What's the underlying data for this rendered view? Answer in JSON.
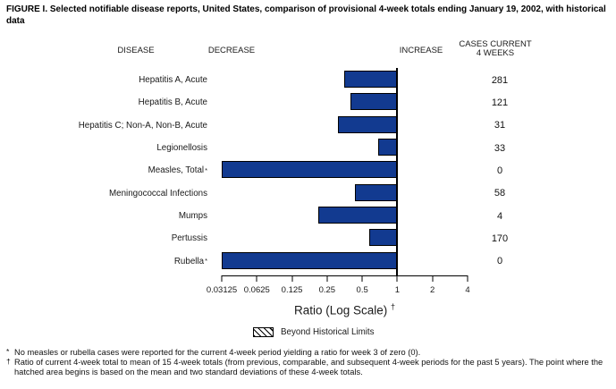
{
  "title": "FIGURE I. Selected notifiable disease reports, United States, comparison of provisional 4-week totals ending January 19, 2002, with historical data",
  "headers": {
    "disease": "DISEASE",
    "decrease": "DECREASE",
    "increase": "INCREASE",
    "cases_line1": "CASES CURRENT",
    "cases_line2": "4 WEEKS"
  },
  "chart_data": {
    "type": "bar",
    "orientation": "horizontal",
    "scale": "log2",
    "title": "Comparison of provisional 4-week totals ending January 19, 2002, with historical data",
    "bar_color": "#123a90",
    "axis": {
      "min": 0.03125,
      "max": 4,
      "baseline": 1,
      "ticks": [
        "0.03125",
        "0.0625",
        "0.125",
        "0.25",
        "0.5",
        "1",
        "2",
        "4"
      ],
      "label": "Ratio (Log Scale)",
      "label_superscript": "†"
    },
    "rows": [
      {
        "disease": "Hepatitis A, Acute",
        "sup": "",
        "ratio": 0.35,
        "cases": "281"
      },
      {
        "disease": "Hepatitis B, Acute",
        "sup": "",
        "ratio": 0.4,
        "cases": "121"
      },
      {
        "disease": "Hepatitis C; Non-A, Non-B, Acute",
        "sup": "",
        "ratio": 0.31,
        "cases": "31"
      },
      {
        "disease": "Legionellosis",
        "sup": "",
        "ratio": 0.68,
        "cases": "33"
      },
      {
        "disease": "Measles, Total",
        "sup": "*",
        "ratio": 0,
        "cases": "0"
      },
      {
        "disease": "Meningococcal Infections",
        "sup": "",
        "ratio": 0.43,
        "cases": "58"
      },
      {
        "disease": "Mumps",
        "sup": "",
        "ratio": 0.21,
        "cases": "4"
      },
      {
        "disease": "Pertussis",
        "sup": "",
        "ratio": 0.57,
        "cases": "170"
      },
      {
        "disease": "Rubella",
        "sup": "*",
        "ratio": 0,
        "cases": "0"
      }
    ],
    "zero_ratio_note": "Bars with ratio 0 are drawn to the axis minimum",
    "legend": {
      "swatch": "diagonal-hatch",
      "label": "Beyond Historical Limits"
    },
    "grid": false,
    "legend_position": "below-axis"
  },
  "footnotes": [
    {
      "marker": "*",
      "text": "No measles or rubella cases were reported for the current 4-week period yielding a ratio for week 3 of zero (0)."
    },
    {
      "marker": "†",
      "text": "Ratio of current 4-week total to mean of 15 4-week totals (from previous, comparable, and subsequent 4-week periods for the past 5 years). The point where the hatched area begins is based on the mean and two standard deviations of these 4-week totals."
    }
  ]
}
